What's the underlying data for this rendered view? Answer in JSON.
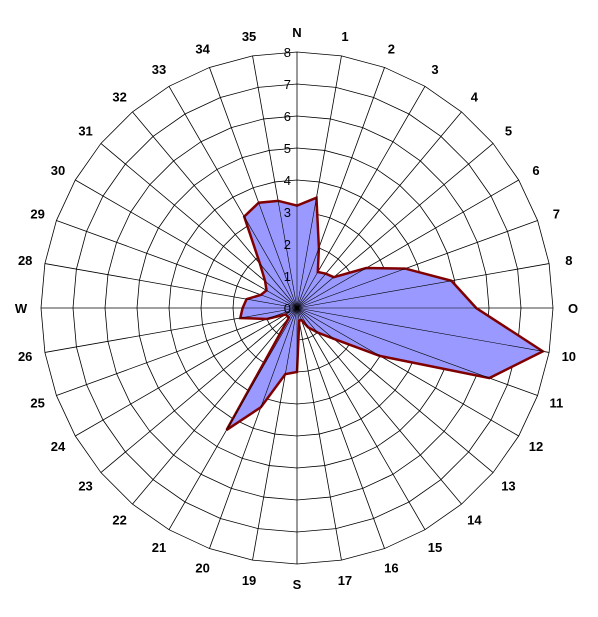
{
  "chart_data": {
    "type": "radar",
    "title": "",
    "rlim": [
      0,
      8
    ],
    "radial_ticks": [
      "0",
      "1",
      "2",
      "3",
      "4",
      "5",
      "6",
      "7",
      "8"
    ],
    "grid": true,
    "directions": [
      "N",
      "1",
      "2",
      "3",
      "4",
      "5",
      "6",
      "7",
      "8",
      "O",
      "10",
      "11",
      "12",
      "13",
      "14",
      "15",
      "16",
      "17",
      "S",
      "19",
      "20",
      "21",
      "22",
      "23",
      "24",
      "25",
      "26",
      "W",
      "28",
      "29",
      "30",
      "31",
      "32",
      "33",
      "34",
      "35"
    ],
    "series": [
      {
        "values": [
          3.2,
          3.5,
          2.0,
          1.3,
          1.4,
          1.5,
          2.5,
          3.6,
          4.9,
          5.6,
          7.8,
          6.4,
          3.0,
          1.5,
          1.0,
          0.7,
          0.4,
          0.4,
          2.0,
          2.1,
          3.3,
          4.4,
          0.4,
          0.4,
          0.4,
          1.0,
          1.8,
          1.7,
          1.6,
          1.2,
          1.1,
          1.3,
          1.8,
          3.3,
          3.5,
          3.4
        ]
      }
    ],
    "colors": {
      "fill": "#9999ff",
      "stroke": "#800000",
      "grid": "#000000"
    }
  }
}
